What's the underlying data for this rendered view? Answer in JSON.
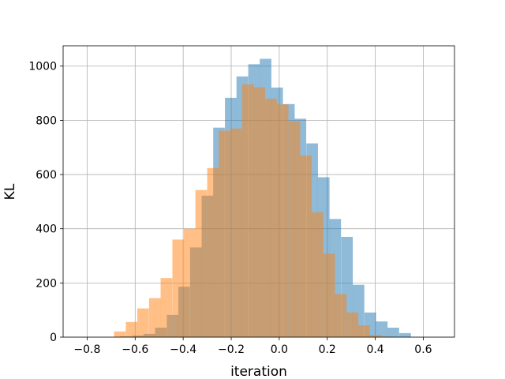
{
  "chart_data": {
    "type": "bar",
    "subtype": "overlaid-histogram",
    "title": "",
    "xlabel": "iteration",
    "ylabel": "KL",
    "xlim": [
      -0.9,
      0.73
    ],
    "ylim": [
      0,
      1075
    ],
    "grid": true,
    "legend": "none",
    "xticks": [
      -0.8,
      -0.6,
      -0.4,
      -0.2,
      0.0,
      0.2,
      0.4,
      0.6
    ],
    "xtick_labels": [
      "−0.8",
      "−0.6",
      "−0.4",
      "−0.2",
      "0.0",
      "0.2",
      "0.4",
      "0.6"
    ],
    "yticks": [
      0,
      200,
      400,
      600,
      800,
      1000
    ],
    "ytick_labels": [
      "0",
      "200",
      "400",
      "600",
      "800",
      "1000"
    ],
    "bin_width": 0.0484,
    "series": [
      {
        "color": "#1f77b4",
        "opacity": 0.5,
        "bin_starts": [
          -0.662,
          -0.613,
          -0.565,
          -0.517,
          -0.468,
          -0.42,
          -0.371,
          -0.323,
          -0.275,
          -0.226,
          -0.178,
          -0.129,
          -0.081,
          -0.033,
          0.016,
          0.064,
          0.113,
          0.161,
          0.209,
          0.258,
          0.306,
          0.355,
          0.403,
          0.451,
          0.5
        ],
        "values": [
          3,
          6,
          12,
          35,
          82,
          186,
          331,
          522,
          773,
          883,
          962,
          1007,
          1027,
          921,
          860,
          806,
          715,
          590,
          436,
          370,
          193,
          91,
          58,
          35,
          15
        ]
      },
      {
        "color": "#ff7f0e",
        "opacity": 0.5,
        "bin_starts": [
          -0.688,
          -0.639,
          -0.591,
          -0.542,
          -0.494,
          -0.445,
          -0.397,
          -0.349,
          -0.3,
          -0.252,
          -0.203,
          -0.155,
          -0.107,
          -0.058,
          -0.01,
          0.039,
          0.087,
          0.135,
          0.184,
          0.232,
          0.281,
          0.329,
          0.378,
          0.426
        ],
        "values": [
          21,
          56,
          106,
          144,
          218,
          360,
          400,
          543,
          624,
          762,
          770,
          933,
          922,
          880,
          859,
          797,
          670,
          461,
          308,
          159,
          91,
          44,
          8,
          2
        ]
      }
    ]
  }
}
